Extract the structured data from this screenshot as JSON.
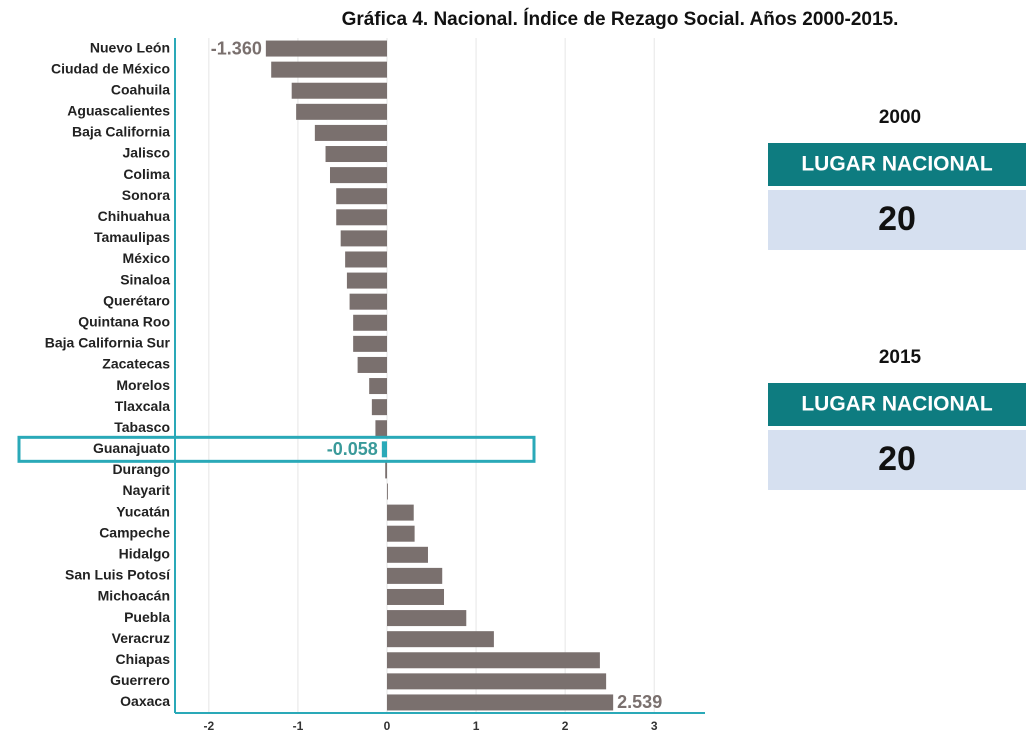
{
  "chart_data": {
    "type": "hbar",
    "title": "Gráfica 4. Nacional. Índice de Rezago Social. Años 2000-2015.",
    "categories": [
      "Nuevo León",
      "Ciudad de México",
      "Coahuila",
      "Aguascalientes",
      "Baja California",
      "Jalisco",
      "Colima",
      "Sonora",
      "Chihuahua",
      "Tamaulipas",
      "México",
      "Sinaloa",
      "Querétaro",
      "Quintana Roo",
      "Baja California Sur",
      "Zacatecas",
      "Morelos",
      "Tlaxcala",
      "Tabasco",
      "Guanajuato",
      "Durango",
      "Nayarit",
      "Yucatán",
      "Campeche",
      "Hidalgo",
      "San Luis Potosí",
      "Michoacán",
      "Puebla",
      "Veracruz",
      "Chiapas",
      "Guerrero",
      "Oaxaca"
    ],
    "values": [
      -1.36,
      -1.3,
      -1.07,
      -1.02,
      -0.81,
      -0.69,
      -0.64,
      -0.57,
      -0.57,
      -0.52,
      -0.47,
      -0.45,
      -0.42,
      -0.38,
      -0.38,
      -0.33,
      -0.2,
      -0.17,
      -0.13,
      -0.058,
      -0.02,
      0.01,
      0.3,
      0.31,
      0.46,
      0.62,
      0.64,
      0.89,
      1.2,
      2.39,
      2.46,
      2.539
    ],
    "value_labels": [
      "-1.360",
      null,
      null,
      null,
      null,
      null,
      null,
      null,
      null,
      null,
      null,
      null,
      null,
      null,
      null,
      null,
      null,
      null,
      null,
      "-0.058",
      null,
      null,
      null,
      null,
      null,
      null,
      null,
      null,
      null,
      null,
      null,
      "2.539"
    ],
    "color": "#7a706e",
    "highlight": "Guanajuato",
    "highlight_color": "#2aa9b8",
    "xlim": [
      -2.38,
      3.57
    ],
    "xticks": [
      -2,
      -1,
      0,
      1,
      2,
      3
    ],
    "grid": true
  },
  "panels": [
    {
      "year": "2000",
      "heading": "LUGAR NACIONAL",
      "rank": 20
    },
    {
      "year": "2015",
      "heading": "LUGAR NACIONAL",
      "rank": 20
    }
  ]
}
